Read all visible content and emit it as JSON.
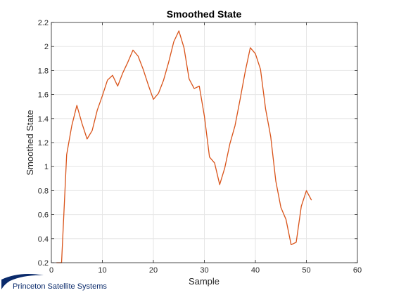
{
  "chart_data": {
    "type": "line",
    "title": "Smoothed State",
    "xlabel": "Sample",
    "ylabel": "Smoothed State",
    "xlim": [
      0,
      60
    ],
    "ylim": [
      0.2,
      2.2
    ],
    "xticks": [
      0,
      10,
      20,
      30,
      40,
      50,
      60
    ],
    "yticks": [
      0.2,
      0.4,
      0.6,
      0.8,
      1,
      1.2,
      1.4,
      1.6,
      1.8,
      2,
      2.2
    ],
    "xtick_labels": [
      "0",
      "10",
      "20",
      "30",
      "40",
      "50",
      "60"
    ],
    "ytick_labels": [
      "0.2",
      "0.4",
      "0.6",
      "0.8",
      "1",
      "1.2",
      "1.4",
      "1.6",
      "1.8",
      "2",
      "2.2"
    ],
    "grid": true,
    "series": [
      {
        "color": "#d95319",
        "x": [
          1,
          2,
          3,
          4,
          5,
          6,
          7,
          8,
          9,
          10,
          11,
          12,
          13,
          14,
          15,
          16,
          17,
          18,
          19,
          20,
          21,
          22,
          23,
          24,
          25,
          26,
          27,
          28,
          29,
          30,
          31,
          32,
          33,
          34,
          35,
          36,
          37,
          38,
          39,
          40,
          41,
          42,
          43,
          44,
          45,
          46,
          47,
          48,
          49,
          50,
          51
        ],
        "y": [
          0.2,
          0.2,
          1.1,
          1.34,
          1.51,
          1.36,
          1.23,
          1.3,
          1.47,
          1.59,
          1.72,
          1.76,
          1.67,
          1.78,
          1.87,
          1.97,
          1.92,
          1.81,
          1.68,
          1.56,
          1.61,
          1.72,
          1.87,
          2.04,
          2.13,
          1.99,
          1.73,
          1.65,
          1.67,
          1.42,
          1.08,
          1.03,
          0.85,
          0.99,
          1.19,
          1.34,
          1.56,
          1.79,
          1.99,
          1.94,
          1.81,
          1.48,
          1.25,
          0.88,
          0.66,
          0.56,
          0.35,
          0.37,
          0.67,
          0.8,
          0.72
        ]
      }
    ]
  },
  "branding": {
    "logo_text": "Princeton Satellite Systems",
    "logo_color": "#0a2a6b"
  },
  "colors": {
    "axes_background": "#ffffff",
    "axis_color": "#262626",
    "grid_color": "#e6e6e6",
    "line_color": "#d95319"
  }
}
